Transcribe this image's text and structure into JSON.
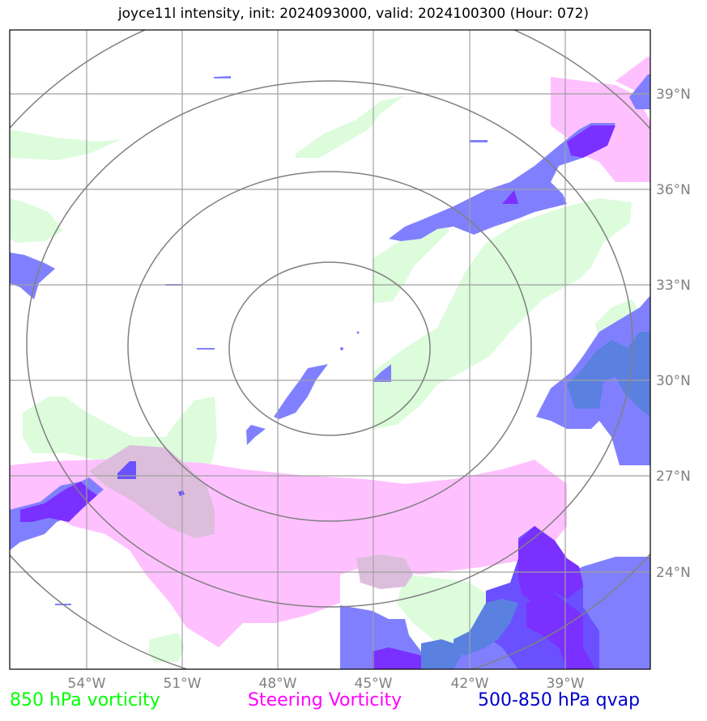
{
  "title": "joyce11l intensity, init: 2024093000, valid: 2024100300 (Hour: 072)",
  "axes": {
    "lon_ticks": [
      "54°W",
      "51°W",
      "48°W",
      "45°W",
      "42°W",
      "39°W"
    ],
    "lat_ticks": [
      "39°N",
      "36°N",
      "33°N",
      "30°N",
      "27°N",
      "24°N"
    ]
  },
  "legend": [
    {
      "label": "850 hPa vorticity",
      "color": "#00ff00"
    },
    {
      "label": "Steering Vorticity",
      "color": "#ff00ff"
    },
    {
      "label": "500-850 hPa qvap",
      "color": "#0000cc"
    }
  ],
  "colors": {
    "vorticity_850": "#dcfcdc",
    "steering_vorticity": "#ffc0ff",
    "qvap_light": "#8080ff",
    "qvap_medium": "#6a50ff",
    "qvap_dark": "#7a30ff",
    "overlap_blue": "#5a80e0",
    "overlap_pink_green": "#dcbedc",
    "grid": "#a0a0a0",
    "range_rings": "#808080"
  },
  "map": {
    "lon_range": [
      "56.5°W",
      "36.5°W"
    ],
    "lat_range": [
      "21°N",
      "41°N"
    ],
    "range_rings": 4
  }
}
